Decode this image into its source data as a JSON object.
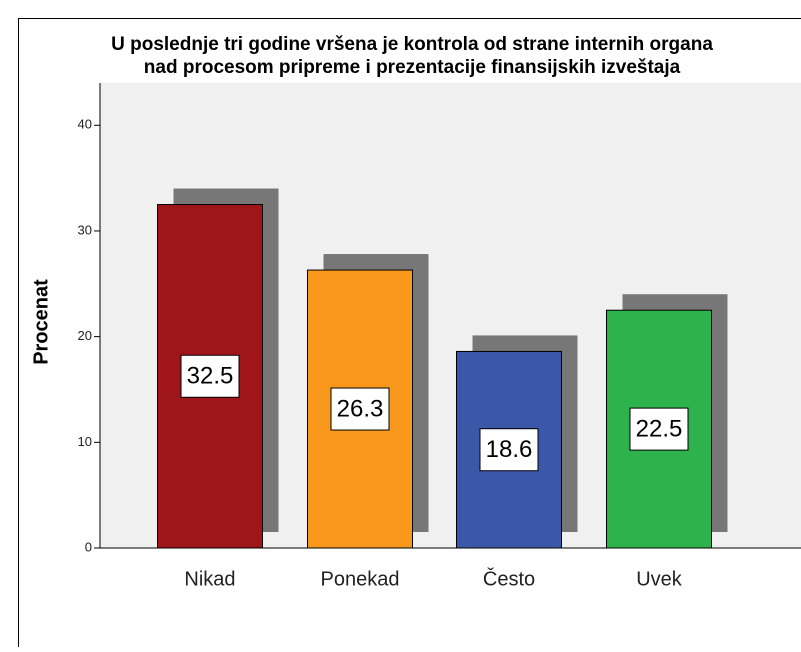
{
  "chart_data": {
    "type": "bar",
    "title": [
      "U poslednje tri godine vršena je kontrola od strane internih organa",
      "nad procesom pripreme i prezentacije finansijskih izveštaja"
    ],
    "y_label": "Procenat",
    "categories": [
      "Nikad",
      "Ponekad",
      "Često",
      "Uvek"
    ],
    "values": [
      32.5,
      26.3,
      18.6,
      22.5
    ],
    "colors": [
      "#a01519",
      "#f8981d",
      "#3b57a7",
      "#2eb24b"
    ],
    "ylim": [
      0,
      44
    ],
    "yticks": [
      0,
      10,
      20,
      30,
      40
    ]
  }
}
